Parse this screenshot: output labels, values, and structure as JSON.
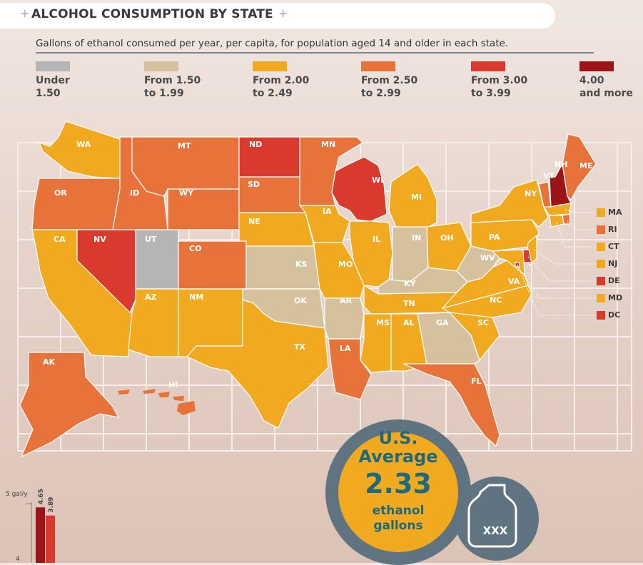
{
  "title": "ALCOHOL CONSUMPTION BY STATE",
  "subtitle": "Gallons of ethanol consumed per year, per capita, for population aged 14 and older in each state.",
  "legend": [
    {
      "line1": "Under",
      "line2": "1.50",
      "color": "#b5b5b5"
    },
    {
      "line1": "From 1.50",
      "line2": "to 1.99",
      "color": "#d6c19e"
    },
    {
      "line1": "From 2.00",
      "line2": "to 2.49",
      "color": "#f1a91f"
    },
    {
      "line1": "From 2.50",
      "line2": "to 2.99",
      "color": "#e8733a"
    },
    {
      "line1": "From 3.00",
      "line2": "to 3.99",
      "color": "#d93a2d"
    },
    {
      "line1": "4.00",
      "line2": "and more",
      "color": "#9c1418"
    }
  ],
  "colors": {
    "c0": "#b5b5b5",
    "c1": "#d6c19e",
    "c2": "#f1a91f",
    "c3": "#e8733a",
    "c4": "#d93a2d",
    "c5": "#9c1418"
  },
  "chart_data": [
    {
      "type": "choropleth",
      "title": "ALCOHOL CONSUMPTION BY STATE",
      "subtitle": "Gallons of ethanol consumed per year, per capita, for population aged 14 and older in each state.",
      "bins": [
        "Under 1.50",
        "From 1.50 to 1.99",
        "From 2.00 to 2.49",
        "From 2.50 to 2.99",
        "From 3.00 to 3.99",
        "4.00 and more"
      ],
      "states": {
        "WA": "From 2.00 to 2.49",
        "OR": "From 2.50 to 2.99",
        "CA": "From 2.00 to 2.49",
        "NV": "From 3.00 to 3.99",
        "ID": "From 2.50 to 2.99",
        "MT": "From 2.50 to 2.99",
        "WY": "From 2.50 to 2.99",
        "UT": "Under 1.50",
        "AZ": "From 2.00 to 2.49",
        "CO": "From 2.50 to 2.99",
        "NM": "From 2.00 to 2.49",
        "ND": "From 3.00 to 3.99",
        "SD": "From 2.50 to 2.99",
        "NE": "From 2.00 to 2.49",
        "KS": "From 1.50 to 1.99",
        "OK": "From 1.50 to 1.99",
        "TX": "From 2.00 to 2.49",
        "MN": "From 2.50 to 2.99",
        "IA": "From 2.00 to 2.49",
        "MO": "From 2.00 to 2.49",
        "AR": "From 1.50 to 1.99",
        "LA": "From 2.50 to 2.99",
        "WI": "From 3.00 to 3.99",
        "IL": "From 2.00 to 2.49",
        "MI": "From 2.00 to 2.49",
        "IN": "From 1.50 to 1.99",
        "OH": "From 2.00 to 2.49",
        "KY": "From 1.50 to 1.99",
        "TN": "From 2.00 to 2.49",
        "MS": "From 2.00 to 2.49",
        "AL": "From 2.00 to 2.49",
        "GA": "From 1.50 to 1.99",
        "FL": "From 2.50 to 2.99",
        "SC": "From 2.00 to 2.49",
        "NC": "From 2.00 to 2.49",
        "VA": "From 2.00 to 2.49",
        "WV": "From 1.50 to 1.99",
        "PA": "From 2.00 to 2.49",
        "NY": "From 2.00 to 2.49",
        "VT": "From 2.50 to 2.99",
        "NH": "4.00 and more",
        "ME": "From 2.50 to 2.99",
        "MA": "From 2.00 to 2.49",
        "RI": "From 2.50 to 2.99",
        "CT": "From 2.00 to 2.49",
        "NJ": "From 2.00 to 2.49",
        "DE": "From 3.00 to 3.99",
        "MD": "From 2.00 to 2.49",
        "DC": "From 3.00 to 3.99",
        "AK": "From 2.50 to 2.99",
        "HI": "From 2.50 to 2.99"
      },
      "average": {
        "label_line1": "U.S.",
        "label_line2": "Average",
        "value": "2.33",
        "unit_line1": "ethanol",
        "unit_line2": "gallons"
      },
      "bottle_label": "XXX"
    },
    {
      "type": "bar",
      "ylabel": "5 gal/y",
      "yticks": [
        4
      ],
      "values": [
        4.65,
        3.89
      ]
    }
  ],
  "northeast_labels": [
    {
      "abbr": "MA",
      "bin": "From 2.00 to 2.49"
    },
    {
      "abbr": "RI",
      "bin": "From 2.50 to 2.99"
    },
    {
      "abbr": "CT",
      "bin": "From 2.00 to 2.49"
    },
    {
      "abbr": "NJ",
      "bin": "From 2.00 to 2.49"
    },
    {
      "abbr": "DE",
      "bin": "From 3.00 to 3.99"
    },
    {
      "abbr": "MD",
      "bin": "From 2.00 to 2.49"
    },
    {
      "abbr": "DC",
      "bin": "From 3.00 to 3.99"
    }
  ]
}
